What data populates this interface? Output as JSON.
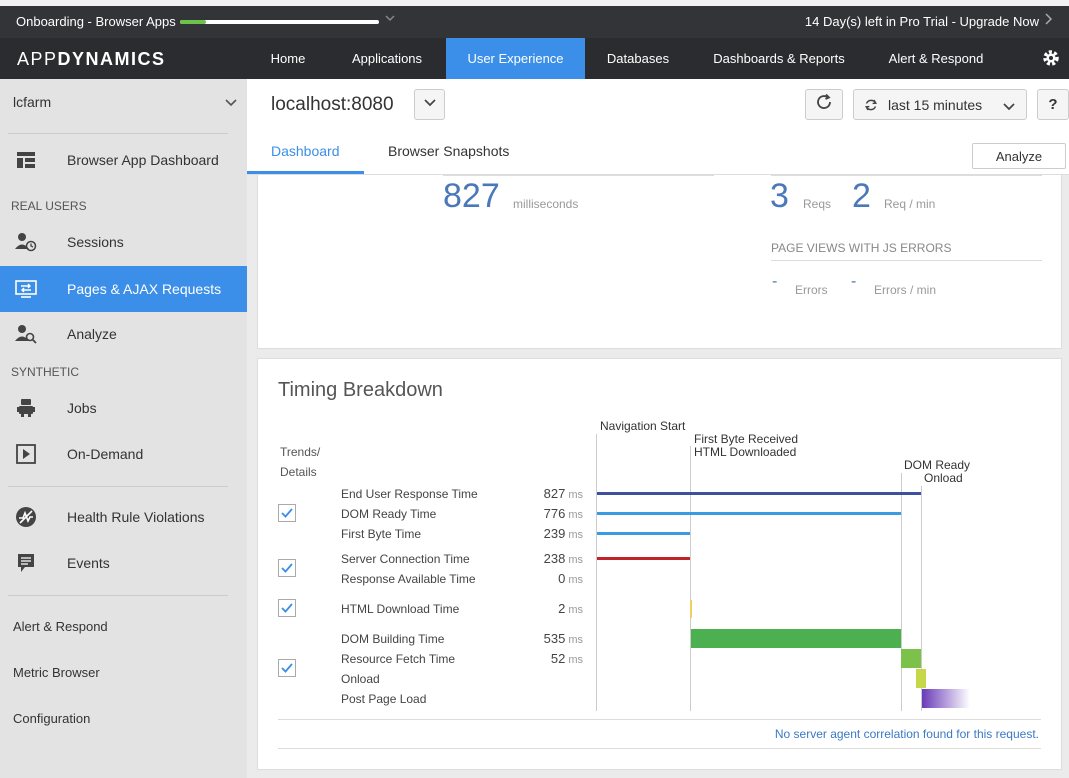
{
  "trialbar": {
    "app_name": "Onboarding - Browser Apps",
    "progress_fraction": 0.13,
    "trial_text": "14 Day(s) left in Pro Trial - Upgrade Now",
    "progress_color": "#6cc24a"
  },
  "nav": {
    "logo_light": "APP",
    "logo_bold": "DYNAMICS",
    "items": [
      {
        "label": "Home"
      },
      {
        "label": "Applications"
      },
      {
        "label": "User Experience"
      },
      {
        "label": "Databases"
      },
      {
        "label": "Dashboards & Reports"
      },
      {
        "label": "Alert & Respond"
      }
    ],
    "active_item": "User Experience",
    "accent": "#3b8fe8"
  },
  "sidebar": {
    "app_selector": "lcfarm",
    "items": [
      {
        "label": "Browser App Dashboard",
        "icon": "dashboard-icon"
      },
      {
        "label": "Sessions",
        "icon": "sessions-icon"
      },
      {
        "label": "Pages & AJAX Requests",
        "icon": "pages-icon"
      },
      {
        "label": "Analyze",
        "icon": "analyze-icon"
      },
      {
        "label": "Jobs",
        "icon": "robot-icon"
      },
      {
        "label": "On-Demand",
        "icon": "play-icon"
      },
      {
        "label": "Health Rule Violations",
        "icon": "health-icon"
      },
      {
        "label": "Events",
        "icon": "events-icon"
      }
    ],
    "sections": {
      "real_users": "REAL USERS",
      "synthetic": "SYNTHETIC"
    },
    "active_item": "Pages & AJAX Requests",
    "bottom_links": [
      {
        "label": "Alert & Respond"
      },
      {
        "label": "Metric Browser"
      },
      {
        "label": "Configuration"
      }
    ]
  },
  "header": {
    "host": "localhost:8080",
    "time_range": "last 15 minutes",
    "help": "?",
    "tabs": [
      {
        "label": "Dashboard"
      },
      {
        "label": "Browser Snapshots"
      }
    ],
    "active_tab": "Dashboard",
    "analyze_label": "Analyze"
  },
  "summary": {
    "response_time": {
      "value": "827",
      "unit": "milliseconds"
    },
    "requests": {
      "value": "3",
      "unit": "Reqs"
    },
    "rate": {
      "value": "2",
      "unit": "Req / min"
    },
    "js_errors_title": "PAGE VIEWS WITH JS ERRORS",
    "errors": {
      "value": "-",
      "unit": "Errors"
    },
    "errors_rate": {
      "value": "-",
      "unit": "Errors / min"
    }
  },
  "timing": {
    "title": "Timing Breakdown",
    "trends_label": "Trends/",
    "details_label": "Details",
    "events": {
      "navigation_start": "Navigation Start",
      "first_byte": "First Byte Received",
      "html_downloaded": "HTML Downloaded",
      "dom_ready": "DOM Ready",
      "onload": "Onload"
    },
    "rows": [
      {
        "label": "End User Response Time",
        "value": "827",
        "unit": "ms",
        "color": "#3d4f9e"
      },
      {
        "label": "DOM Ready Time",
        "value": "776",
        "unit": "ms",
        "color": "#3b9be0"
      },
      {
        "label": "First Byte Time",
        "value": "239",
        "unit": "ms",
        "color": "#3b9be0"
      },
      {
        "label": "Server Connection Time",
        "value": "238",
        "unit": "ms",
        "color": "#c0242a"
      },
      {
        "label": "Response Available Time",
        "value": "0",
        "unit": "ms",
        "color": "#c0242a"
      },
      {
        "label": "HTML Download Time",
        "value": "2",
        "unit": "ms",
        "color": "#f0d060"
      },
      {
        "label": "DOM Building Time",
        "value": "535",
        "unit": "ms",
        "color": "#4db050"
      },
      {
        "label": "Resource Fetch Time",
        "value": "52",
        "unit": "ms",
        "color": "#7cc24a"
      },
      {
        "label": "Onload",
        "value": "",
        "unit": "",
        "color": "#c6d84a"
      },
      {
        "label": "Post Page Load",
        "value": "",
        "unit": "",
        "color": "#6a3ab8"
      }
    ],
    "checkboxes_checked": [
      true,
      true,
      true,
      true
    ],
    "correlation_note": "No server agent correlation found for this request."
  }
}
